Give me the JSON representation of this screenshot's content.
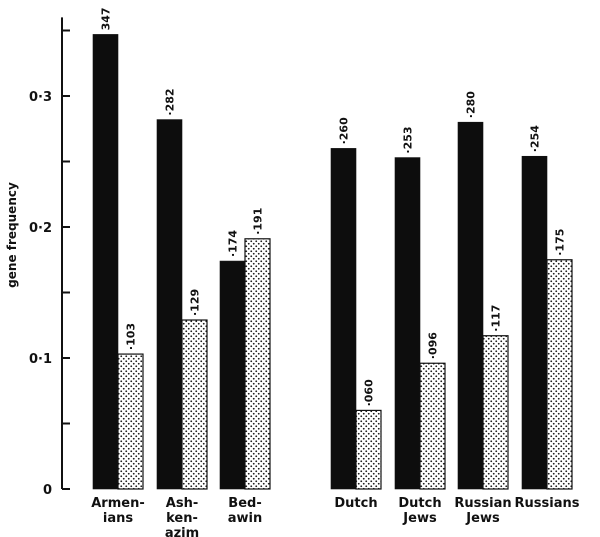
{
  "chart_data": {
    "type": "bar",
    "ylabel": "gene frequency",
    "ylim": [
      0,
      0.36
    ],
    "yticks": [
      0,
      0.1,
      0.2,
      0.3
    ],
    "ytick_labels": [
      "0",
      "0·1",
      "0·2",
      "0·3"
    ],
    "categories": [
      {
        "lines": [
          "Armen-",
          "ians"
        ]
      },
      {
        "lines": [
          "Ash-",
          "ken-",
          "azim"
        ]
      },
      {
        "lines": [
          "Bed-",
          "awin"
        ]
      },
      {
        "lines": [
          "Dutch"
        ]
      },
      {
        "lines": [
          "Dutch",
          "Jews"
        ]
      },
      {
        "lines": [
          "Russian",
          "Jews"
        ]
      },
      {
        "lines": [
          "Russians"
        ]
      }
    ],
    "series": [
      {
        "style": "solid-black",
        "values": [
          0.347,
          0.282,
          0.174,
          0.26,
          0.253,
          0.28,
          0.254
        ],
        "labels": [
          "347",
          "·282",
          "·174",
          "·260",
          "·253",
          "·280",
          "·254"
        ]
      },
      {
        "style": "stippled",
        "values": [
          0.103,
          0.129,
          0.191,
          0.06,
          0.096,
          0.117,
          0.175
        ],
        "labels": [
          "·103",
          "·129",
          "·191",
          "·060",
          "·096",
          "·117",
          "·175"
        ]
      }
    ],
    "grid": false,
    "colors": {
      "solid": "#0d0d0d",
      "stipple_bg": "#ffffff",
      "stipple_dot": "#1a1a1a",
      "axis": "#111111"
    }
  }
}
